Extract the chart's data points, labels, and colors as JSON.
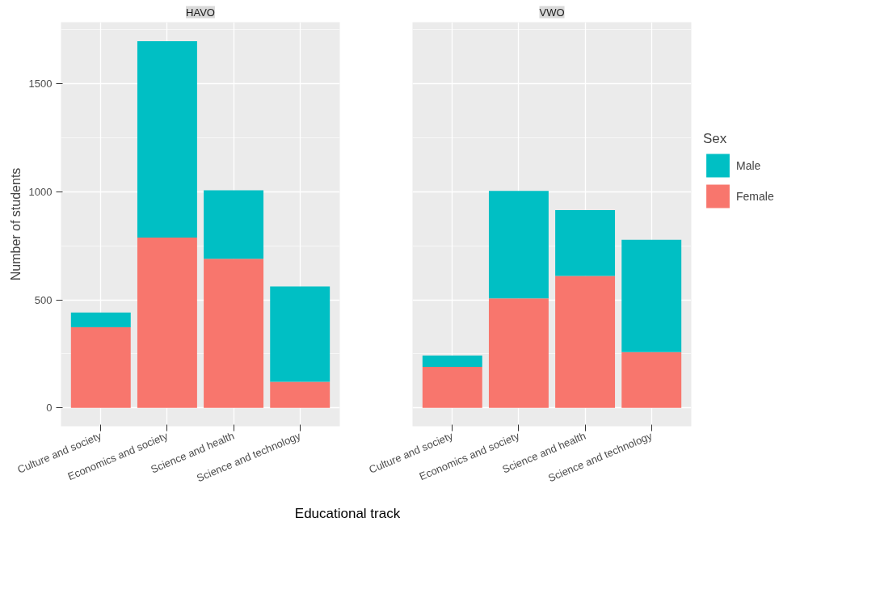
{
  "chart_data": [
    {
      "type": "bar",
      "title": "HAVO",
      "ylabel": "Number of students",
      "xlabel": "Educational track",
      "stacked": true,
      "grid": true,
      "ylim": [
        -85,
        1785
      ],
      "yticks": [
        0,
        500,
        1000,
        1500
      ],
      "categories": [
        "Culture and society",
        "Economics and society",
        "Science and health",
        "Science and technology"
      ],
      "series": [
        {
          "color": "#f8766d",
          "values": [
            373,
            788,
            690,
            121
          ]
        },
        {
          "color": "#00bfc4",
          "values": [
            68,
            909,
            317,
            441
          ]
        }
      ]
    },
    {
      "type": "bar",
      "title": "VWO",
      "stacked": true,
      "grid": true,
      "ylim": [
        -85,
        1785
      ],
      "yticks": [
        0,
        500,
        1000,
        1500
      ],
      "tick_labels": "x",
      "legend": "right",
      "legend_title": "Sex",
      "categories": [
        "Culture and society",
        "Economics and society",
        "Science and health",
        "Science and technology"
      ],
      "series": [
        {
          "name": "Female",
          "color": "#f8766d",
          "values": [
            190,
            507,
            611,
            258
          ]
        },
        {
          "name": "Male",
          "color": "#00bfc4",
          "values": [
            52,
            497,
            304,
            520
          ]
        }
      ]
    }
  ]
}
